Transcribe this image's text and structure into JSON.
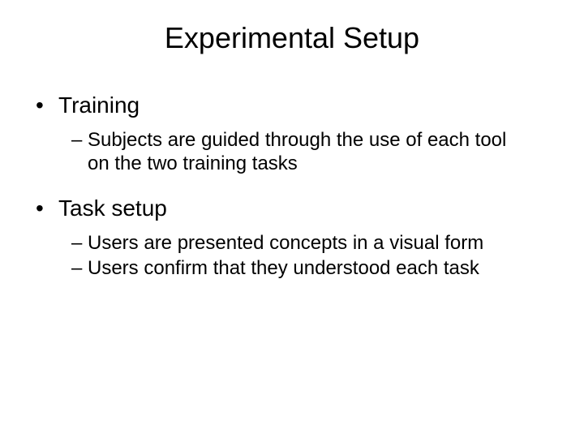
{
  "slide": {
    "title": "Experimental Setup",
    "background_color": "#ffffff",
    "text_color": "#000000",
    "title_fontsize": 36,
    "bullet_l1_fontsize": 28,
    "bullet_l2_fontsize": 24,
    "bullets": [
      {
        "label": "Training",
        "sub": [
          "Subjects are guided through the use of each tool on the two training tasks"
        ]
      },
      {
        "label": "Task setup",
        "sub": [
          "Users are presented concepts in a visual form",
          "Users confirm that they understood each task"
        ]
      }
    ],
    "l1_marker": "•",
    "l2_marker": "–"
  }
}
